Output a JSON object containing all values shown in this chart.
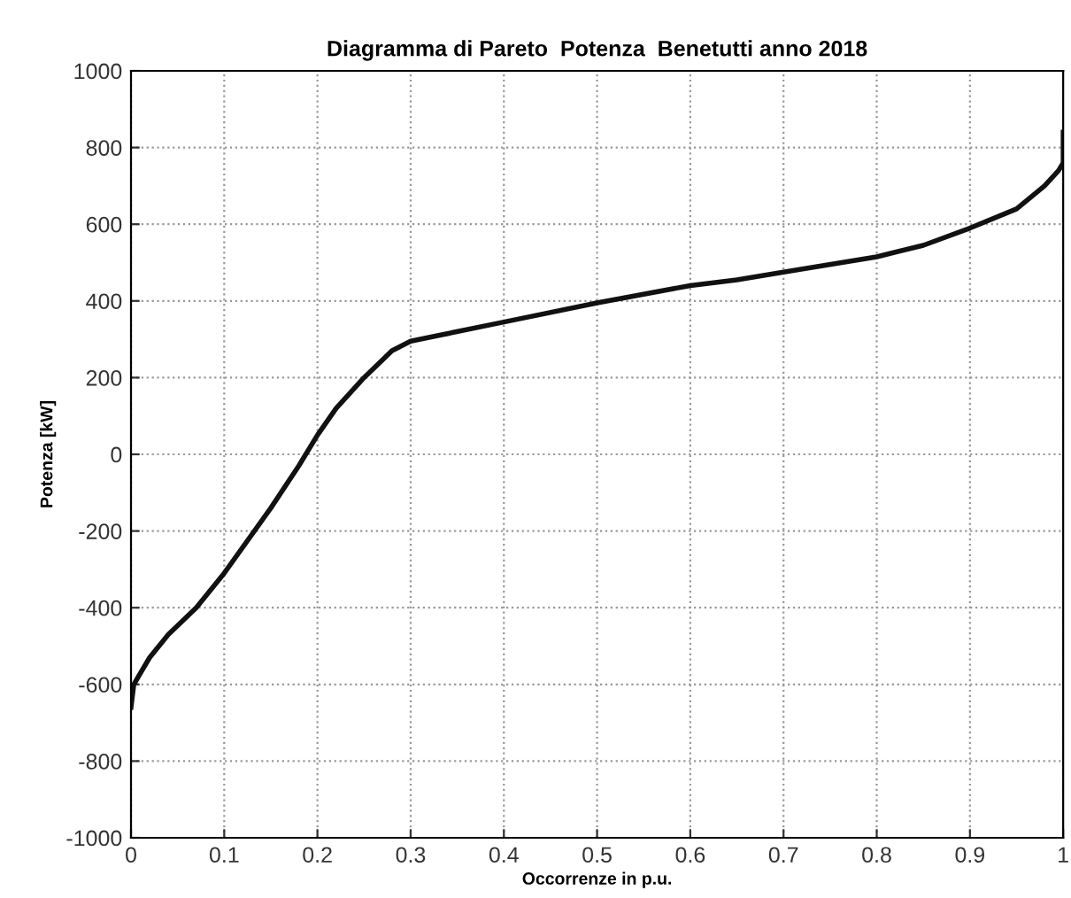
{
  "chart_data": {
    "type": "line",
    "title": "Diagramma di Pareto  Potenza  Benetutti anno 2018",
    "xlabel": "Occorrenze in p.u.",
    "ylabel": "Potenza [kW]",
    "series": [
      {
        "color": "#111111",
        "x": [
          0,
          0.003,
          0.02,
          0.04,
          0.07,
          0.1,
          0.15,
          0.18,
          0.2,
          0.22,
          0.25,
          0.28,
          0.3,
          0.33,
          0.4,
          0.5,
          0.6,
          0.65,
          0.7,
          0.8,
          0.85,
          0.9,
          0.95,
          0.98,
          0.995,
          1.0,
          1.0
        ],
        "values": [
          -660,
          -600,
          -530,
          -470,
          -400,
          -310,
          -140,
          -30,
          50,
          120,
          200,
          270,
          295,
          310,
          345,
          395,
          440,
          455,
          475,
          515,
          545,
          590,
          640,
          700,
          740,
          760,
          840
        ]
      }
    ],
    "xlim": [
      0,
      1
    ],
    "xticks": [
      0,
      0.1,
      0.2,
      0.3,
      0.4,
      0.5,
      0.6,
      0.7,
      0.8,
      0.9,
      1
    ],
    "ylim": [
      -1000,
      1000
    ],
    "yticks": [
      -1000,
      -800,
      -600,
      -400,
      -200,
      0,
      200,
      400,
      600,
      800,
      1000
    ],
    "grid": true,
    "line_style": "solid"
  }
}
